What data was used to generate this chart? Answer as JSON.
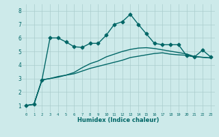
{
  "xlabel": "Humidex (Indice chaleur)",
  "background_color": "#cdeaea",
  "grid_color": "#aacccc",
  "line_color": "#006666",
  "xlim": [
    -0.5,
    23.5
  ],
  "ylim": [
    0.5,
    8.5
  ],
  "xticks": [
    0,
    1,
    2,
    3,
    4,
    5,
    6,
    7,
    8,
    9,
    10,
    11,
    12,
    13,
    14,
    15,
    16,
    17,
    18,
    19,
    20,
    21,
    22,
    23
  ],
  "yticks": [
    1,
    2,
    3,
    4,
    5,
    6,
    7,
    8
  ],
  "series1_x": [
    0,
    1,
    2,
    3,
    4,
    5,
    6,
    7,
    8,
    9,
    10,
    11,
    12,
    13,
    14,
    15,
    16,
    17,
    18,
    19,
    20,
    21,
    22,
    23
  ],
  "series1_y": [
    1.0,
    1.1,
    2.9,
    3.0,
    3.1,
    3.25,
    3.35,
    3.55,
    3.75,
    3.9,
    4.05,
    4.2,
    4.35,
    4.55,
    4.65,
    4.75,
    4.85,
    4.9,
    4.8,
    4.75,
    4.72,
    4.62,
    4.57,
    4.52
  ],
  "series2_x": [
    0,
    1,
    2,
    3,
    4,
    5,
    6,
    7,
    8,
    9,
    10,
    11,
    12,
    13,
    14,
    15,
    16,
    17,
    18,
    19,
    20,
    21,
    22,
    23
  ],
  "series2_y": [
    1.0,
    1.1,
    2.9,
    3.0,
    3.15,
    3.25,
    3.45,
    3.8,
    4.1,
    4.3,
    4.6,
    4.8,
    5.0,
    5.15,
    5.25,
    5.28,
    5.22,
    5.12,
    5.02,
    4.92,
    4.82,
    4.62,
    4.57,
    4.52
  ],
  "series3_x": [
    0,
    1,
    2,
    3,
    4,
    5,
    6,
    7,
    8,
    9,
    10,
    11,
    12,
    13,
    14,
    15,
    16,
    17,
    18,
    19,
    20,
    21,
    22,
    23
  ],
  "series3_y": [
    1.0,
    1.1,
    2.9,
    6.0,
    6.0,
    5.7,
    5.35,
    5.3,
    5.6,
    5.6,
    6.2,
    7.0,
    7.2,
    7.75,
    7.0,
    6.3,
    5.6,
    5.5,
    5.5,
    5.5,
    4.7,
    4.6,
    5.1,
    4.6
  ],
  "marker": "D",
  "markersize": 2.5,
  "linewidth": 1.0
}
